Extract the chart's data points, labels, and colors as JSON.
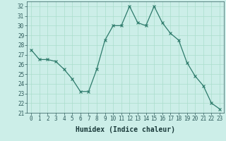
{
  "x": [
    0,
    1,
    2,
    3,
    4,
    5,
    6,
    7,
    8,
    9,
    10,
    11,
    12,
    13,
    14,
    15,
    16,
    17,
    18,
    19,
    20,
    21,
    22,
    23
  ],
  "y": [
    27.5,
    26.5,
    26.5,
    26.3,
    25.5,
    24.5,
    23.2,
    23.2,
    25.5,
    28.5,
    30.0,
    30.0,
    32.0,
    30.3,
    30.0,
    32.0,
    30.3,
    29.2,
    28.5,
    26.2,
    24.8,
    23.8,
    22.0,
    21.4
  ],
  "line_color": "#2d7a6b",
  "marker": "x",
  "marker_size": 3,
  "marker_lw": 0.8,
  "bg_color": "#cceee8",
  "grid_color": "#aaddcc",
  "xlabel": "Humidex (Indice chaleur)",
  "ylim": [
    21,
    32.5
  ],
  "yticks": [
    21,
    22,
    23,
    24,
    25,
    26,
    27,
    28,
    29,
    30,
    31,
    32
  ],
  "xticks": [
    0,
    1,
    2,
    3,
    4,
    5,
    6,
    7,
    8,
    9,
    10,
    11,
    12,
    13,
    14,
    15,
    16,
    17,
    18,
    19,
    20,
    21,
    22,
    23
  ],
  "tick_fontsize": 5.5,
  "xlabel_fontsize": 7.0,
  "lw": 0.9
}
